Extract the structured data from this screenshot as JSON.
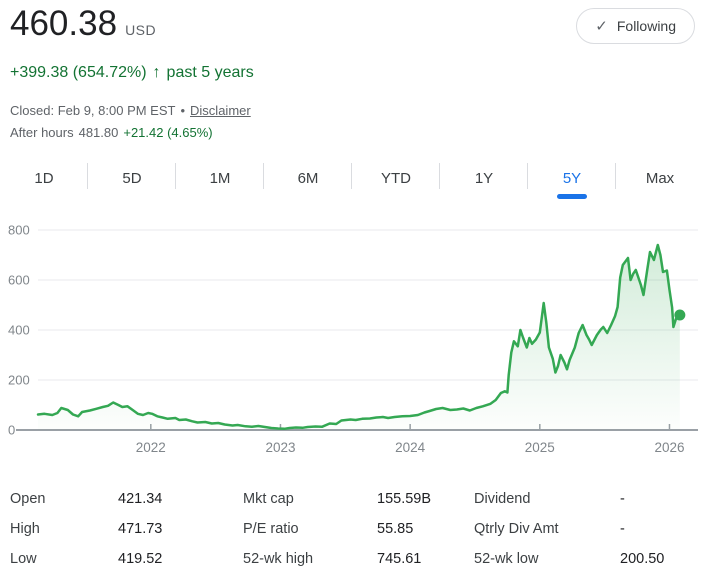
{
  "header": {
    "price": "460.38",
    "currency": "USD",
    "change": {
      "text": "+399.38 (654.72%)",
      "arrow": "↑",
      "period": "past 5 years"
    },
    "market_status": {
      "closed_text": "Closed: Feb 9, 8:00 PM EST",
      "separator": "•",
      "disclaimer_label": "Disclaimer"
    },
    "after_hours": {
      "prefix": "After hours",
      "price": "481.80",
      "change": "+21.42 (4.65%)"
    },
    "following_button": {
      "check_icon": "✓",
      "label": "Following"
    }
  },
  "tabs": {
    "items": [
      "1D",
      "5D",
      "1M",
      "6M",
      "YTD",
      "1Y",
      "5Y",
      "Max"
    ],
    "selected": "5Y"
  },
  "chart_data": {
    "type": "area",
    "title": "5-year stock price history",
    "unit": "USD",
    "grid": true,
    "x_range": [
      2021.13,
      2026.22
    ],
    "x_tick_years": [
      "2022",
      "2023",
      "2024",
      "2025",
      "2026"
    ],
    "y_ticks": [
      0,
      200,
      400,
      600,
      800
    ],
    "ylim": [
      0,
      800
    ],
    "line_color": "#34a853",
    "fill_color_top": "rgba(52,168,83,0.22)",
    "fill_color_bottom": "rgba(52,168,83,0.01)",
    "series": [
      {
        "name": "price",
        "points": [
          [
            2021.13,
            62
          ],
          [
            2021.18,
            65
          ],
          [
            2021.24,
            60
          ],
          [
            2021.28,
            68
          ],
          [
            2021.31,
            88
          ],
          [
            2021.36,
            80
          ],
          [
            2021.4,
            62
          ],
          [
            2021.44,
            55
          ],
          [
            2021.47,
            72
          ],
          [
            2021.53,
            78
          ],
          [
            2021.58,
            85
          ],
          [
            2021.63,
            92
          ],
          [
            2021.67,
            97
          ],
          [
            2021.71,
            110
          ],
          [
            2021.75,
            100
          ],
          [
            2021.78,
            92
          ],
          [
            2021.82,
            95
          ],
          [
            2021.86,
            80
          ],
          [
            2021.9,
            65
          ],
          [
            2021.94,
            60
          ],
          [
            2021.98,
            68
          ],
          [
            2022.01,
            65
          ],
          [
            2022.05,
            55
          ],
          [
            2022.09,
            50
          ],
          [
            2022.13,
            45
          ],
          [
            2022.19,
            48
          ],
          [
            2022.22,
            40
          ],
          [
            2022.27,
            42
          ],
          [
            2022.32,
            35
          ],
          [
            2022.36,
            30
          ],
          [
            2022.42,
            32
          ],
          [
            2022.47,
            26
          ],
          [
            2022.52,
            28
          ],
          [
            2022.57,
            22
          ],
          [
            2022.63,
            18
          ],
          [
            2022.67,
            20
          ],
          [
            2022.73,
            15
          ],
          [
            2022.78,
            13
          ],
          [
            2022.83,
            16
          ],
          [
            2022.88,
            12
          ],
          [
            2022.93,
            8
          ],
          [
            2022.98,
            6
          ],
          [
            2023.03,
            5
          ],
          [
            2023.07,
            8
          ],
          [
            2023.12,
            10
          ],
          [
            2023.17,
            9
          ],
          [
            2023.21,
            12
          ],
          [
            2023.27,
            14
          ],
          [
            2023.32,
            13
          ],
          [
            2023.38,
            26
          ],
          [
            2023.43,
            24
          ],
          [
            2023.47,
            38
          ],
          [
            2023.54,
            42
          ],
          [
            2023.58,
            40
          ],
          [
            2023.63,
            45
          ],
          [
            2023.69,
            46
          ],
          [
            2023.74,
            50
          ],
          [
            2023.79,
            52
          ],
          [
            2023.83,
            48
          ],
          [
            2023.88,
            52
          ],
          [
            2023.94,
            55
          ],
          [
            2024.0,
            56
          ],
          [
            2024.06,
            60
          ],
          [
            2024.11,
            70
          ],
          [
            2024.15,
            76
          ],
          [
            2024.2,
            84
          ],
          [
            2024.25,
            88
          ],
          [
            2024.31,
            80
          ],
          [
            2024.36,
            82
          ],
          [
            2024.41,
            86
          ],
          [
            2024.46,
            78
          ],
          [
            2024.51,
            88
          ],
          [
            2024.56,
            95
          ],
          [
            2024.62,
            105
          ],
          [
            2024.66,
            120
          ],
          [
            2024.7,
            148
          ],
          [
            2024.73,
            155
          ],
          [
            2024.75,
            150
          ],
          [
            2024.76,
            220
          ],
          [
            2024.78,
            310
          ],
          [
            2024.8,
            355
          ],
          [
            2024.83,
            335
          ],
          [
            2024.85,
            400
          ],
          [
            2024.87,
            370
          ],
          [
            2024.9,
            330
          ],
          [
            2024.92,
            368
          ],
          [
            2024.94,
            345
          ],
          [
            2024.97,
            362
          ],
          [
            2025.0,
            390
          ],
          [
            2025.03,
            508
          ],
          [
            2025.05,
            430
          ],
          [
            2025.07,
            330
          ],
          [
            2025.1,
            285
          ],
          [
            2025.12,
            230
          ],
          [
            2025.14,
            256
          ],
          [
            2025.16,
            300
          ],
          [
            2025.19,
            270
          ],
          [
            2025.21,
            243
          ],
          [
            2025.23,
            280
          ],
          [
            2025.27,
            330
          ],
          [
            2025.3,
            388
          ],
          [
            2025.33,
            420
          ],
          [
            2025.36,
            380
          ],
          [
            2025.38,
            362
          ],
          [
            2025.4,
            340
          ],
          [
            2025.44,
            380
          ],
          [
            2025.47,
            402
          ],
          [
            2025.49,
            412
          ],
          [
            2025.52,
            388
          ],
          [
            2025.55,
            420
          ],
          [
            2025.58,
            455
          ],
          [
            2025.6,
            492
          ],
          [
            2025.62,
            610
          ],
          [
            2025.64,
            660
          ],
          [
            2025.68,
            688
          ],
          [
            2025.7,
            600
          ],
          [
            2025.72,
            625
          ],
          [
            2025.74,
            640
          ],
          [
            2025.78,
            580
          ],
          [
            2025.8,
            540
          ],
          [
            2025.83,
            645
          ],
          [
            2025.85,
            712
          ],
          [
            2025.88,
            680
          ],
          [
            2025.91,
            740
          ],
          [
            2025.93,
            700
          ],
          [
            2025.95,
            632
          ],
          [
            2025.98,
            638
          ],
          [
            2026.0,
            560
          ],
          [
            2026.02,
            490
          ],
          [
            2026.03,
            412
          ],
          [
            2026.05,
            445
          ],
          [
            2026.08,
            460
          ]
        ]
      }
    ],
    "end_point": {
      "x": 2026.08,
      "value": 460
    }
  },
  "stats": {
    "rows": [
      [
        {
          "label": "Open",
          "value": "421.34"
        },
        {
          "label": "Mkt cap",
          "value": "155.59B"
        },
        {
          "label": "Dividend",
          "value": "-"
        }
      ],
      [
        {
          "label": "High",
          "value": "471.73"
        },
        {
          "label": "P/E ratio",
          "value": "55.85"
        },
        {
          "label": "Qtrly Div Amt",
          "value": "-"
        }
      ],
      [
        {
          "label": "Low",
          "value": "419.52"
        },
        {
          "label": "52-wk high",
          "value": "745.61"
        },
        {
          "label": "52-wk low",
          "value": "200.50"
        }
      ]
    ]
  },
  "colors": {
    "positive_green_text": "#137333",
    "line_green": "#34a853",
    "accent_blue": "#1a73e8",
    "secondary_text": "#5f6368",
    "axis_text": "#80868b",
    "divider": "#dadce0",
    "gridline": "#e8eaed",
    "baseline": "#9aa0a6"
  }
}
